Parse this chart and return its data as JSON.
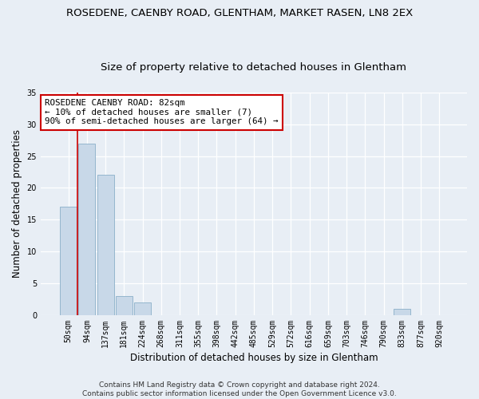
{
  "title": "ROSEDENE, CAENBY ROAD, GLENTHAM, MARKET RASEN, LN8 2EX",
  "subtitle": "Size of property relative to detached houses in Glentham",
  "xlabel": "Distribution of detached houses by size in Glentham",
  "ylabel": "Number of detached properties",
  "bar_color": "#c8d8e8",
  "bar_edge_color": "#8aafc8",
  "categories": [
    "50sqm",
    "94sqm",
    "137sqm",
    "181sqm",
    "224sqm",
    "268sqm",
    "311sqm",
    "355sqm",
    "398sqm",
    "442sqm",
    "485sqm",
    "529sqm",
    "572sqm",
    "616sqm",
    "659sqm",
    "703sqm",
    "746sqm",
    "790sqm",
    "833sqm",
    "877sqm",
    "920sqm"
  ],
  "values": [
    17,
    27,
    22,
    3,
    2,
    0,
    0,
    0,
    0,
    0,
    0,
    0,
    0,
    0,
    0,
    0,
    0,
    0,
    1,
    0,
    0
  ],
  "ylim": [
    0,
    35
  ],
  "yticks": [
    0,
    5,
    10,
    15,
    20,
    25,
    30,
    35
  ],
  "annotation_text": "ROSEDENE CAENBY ROAD: 82sqm\n← 10% of detached houses are smaller (7)\n90% of semi-detached houses are larger (64) →",
  "vline_color": "#cc0000",
  "annotation_box_color": "#ffffff",
  "annotation_box_edge": "#cc0000",
  "footer": "Contains HM Land Registry data © Crown copyright and database right 2024.\nContains public sector information licensed under the Open Government Licence v3.0.",
  "background_color": "#e8eef5",
  "grid_color": "#ffffff",
  "title_fontsize": 9.5,
  "subtitle_fontsize": 9.5,
  "tick_fontsize": 7,
  "ylabel_fontsize": 8.5,
  "xlabel_fontsize": 8.5,
  "footer_fontsize": 6.5
}
